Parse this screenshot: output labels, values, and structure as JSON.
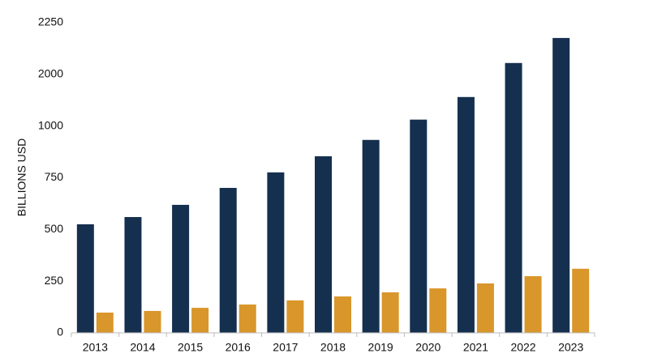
{
  "chart_data": {
    "type": "bar",
    "y_label": "BILLIONS USD",
    "categories": [
      "2013",
      "2014",
      "2015",
      "2016",
      "2017",
      "2018",
      "2019",
      "2020",
      "2021",
      "2022",
      "2023"
    ],
    "series": [
      {
        "color": "#15304f",
        "values": [
          525,
          560,
          619,
          701,
          776,
          854,
          933,
          1125,
          1562,
          2055,
          2176
        ]
      },
      {
        "color": "#d9962b",
        "values": [
          98,
          106,
          121,
          137,
          157,
          176,
          196,
          215,
          239,
          274,
          310
        ]
      }
    ],
    "ylim": [
      0,
      2250
    ],
    "yticks": [
      0,
      250,
      500,
      750,
      1000,
      2000,
      2250
    ],
    "grid": false
  }
}
